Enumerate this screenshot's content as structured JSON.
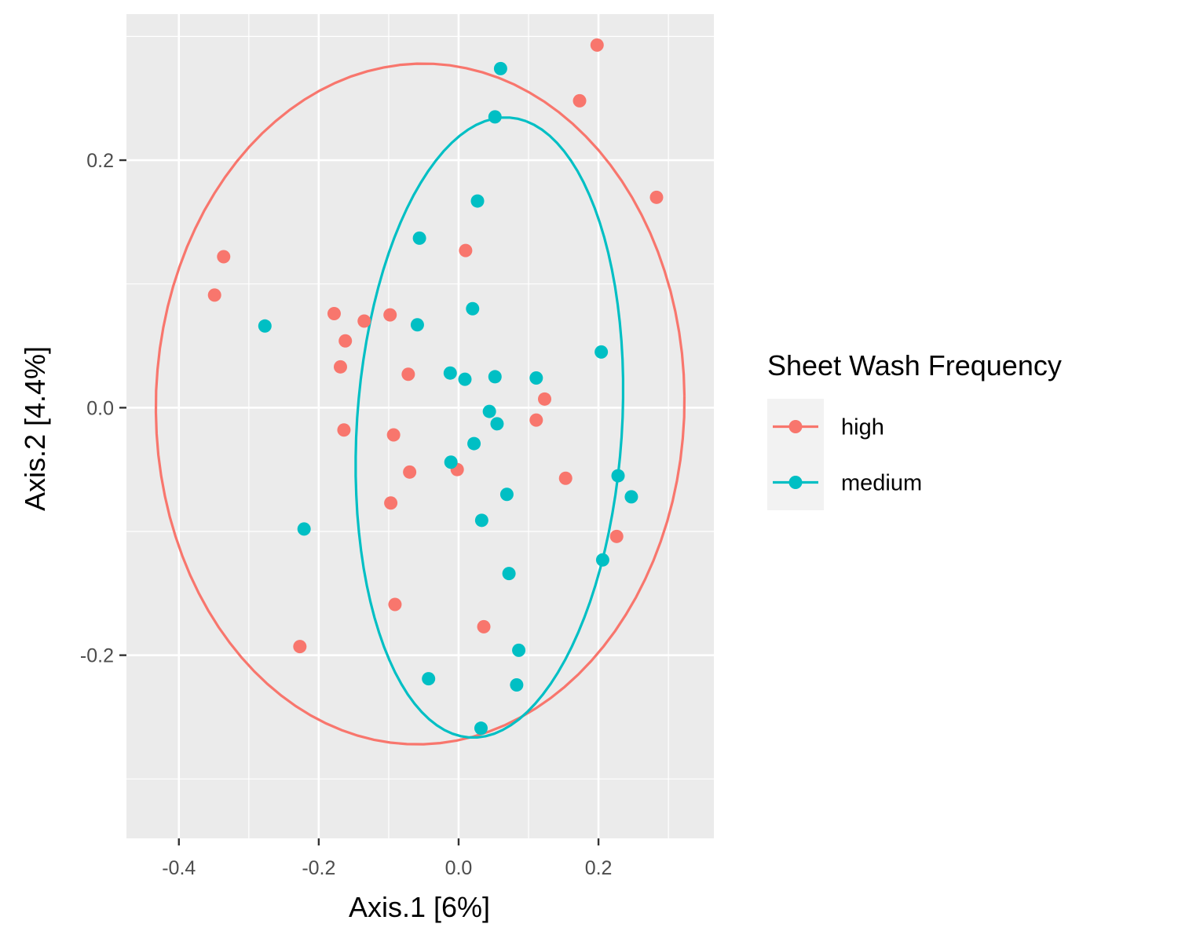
{
  "chart_data": {
    "type": "scatter",
    "title": "",
    "xlabel": "Axis.1   [6%]",
    "ylabel": "Axis.2   [4.4%]",
    "xlim": [
      -0.475,
      0.365
    ],
    "ylim": [
      -0.348,
      0.318
    ],
    "x_ticks": [
      -0.4,
      -0.2,
      0.0,
      0.2
    ],
    "x_tick_labels": [
      "-0.4",
      "-0.2",
      "0.0",
      "0.2"
    ],
    "y_ticks": [
      -0.2,
      0.0,
      0.2
    ],
    "y_tick_labels": [
      "-0.2",
      "0.0",
      "0.2"
    ],
    "grid": true,
    "legend": {
      "title": "Sheet Wash Frequency",
      "position": "right",
      "entries": [
        "high",
        "medium"
      ]
    },
    "colors": {
      "high": "#F8766D",
      "medium": "#00BFC4",
      "panel": "#EBEBEB",
      "grid": "#FFFFFF"
    },
    "series": [
      {
        "name": "high",
        "color": "#F8766D",
        "points": [
          [
            0.198,
            0.293
          ],
          [
            0.173,
            0.248
          ],
          [
            0.283,
            0.17
          ],
          [
            -0.336,
            0.122
          ],
          [
            -0.349,
            0.091
          ],
          [
            0.01,
            0.127
          ],
          [
            -0.178,
            0.076
          ],
          [
            -0.135,
            0.07
          ],
          [
            -0.098,
            0.075
          ],
          [
            -0.162,
            0.054
          ],
          [
            -0.169,
            0.033
          ],
          [
            -0.072,
            0.027
          ],
          [
            0.123,
            0.007
          ],
          [
            0.111,
            -0.01
          ],
          [
            -0.164,
            -0.018
          ],
          [
            -0.093,
            -0.022
          ],
          [
            -0.07,
            -0.052
          ],
          [
            -0.002,
            -0.05
          ],
          [
            0.153,
            -0.057
          ],
          [
            -0.097,
            -0.077
          ],
          [
            0.226,
            -0.104
          ],
          [
            -0.091,
            -0.159
          ],
          [
            0.036,
            -0.177
          ],
          [
            -0.227,
            -0.193
          ]
        ],
        "ellipse": {
          "center": [
            -0.055,
            0.003
          ],
          "semi_axes": [
            0.378,
            0.275
          ],
          "angle_deg": 1
        }
      },
      {
        "name": "medium",
        "color": "#00BFC4",
        "points": [
          [
            0.06,
            0.274
          ],
          [
            0.052,
            0.235
          ],
          [
            0.027,
            0.167
          ],
          [
            -0.056,
            0.137
          ],
          [
            0.02,
            0.08
          ],
          [
            -0.277,
            0.066
          ],
          [
            -0.059,
            0.067
          ],
          [
            0.204,
            0.045
          ],
          [
            -0.012,
            0.028
          ],
          [
            0.009,
            0.023
          ],
          [
            0.052,
            0.025
          ],
          [
            0.111,
            0.024
          ],
          [
            0.044,
            -0.003
          ],
          [
            0.055,
            -0.013
          ],
          [
            0.022,
            -0.029
          ],
          [
            -0.011,
            -0.044
          ],
          [
            0.228,
            -0.055
          ],
          [
            0.247,
            -0.072
          ],
          [
            0.069,
            -0.07
          ],
          [
            0.033,
            -0.091
          ],
          [
            -0.221,
            -0.098
          ],
          [
            0.206,
            -0.123
          ],
          [
            0.072,
            -0.134
          ],
          [
            0.086,
            -0.196
          ],
          [
            -0.043,
            -0.219
          ],
          [
            0.083,
            -0.224
          ],
          [
            0.032,
            -0.259
          ]
        ],
        "ellipse": {
          "center": [
            0.044,
            -0.016
          ],
          "semi_axes": [
            0.253,
            0.188
          ],
          "angle_deg": 78
        }
      }
    ]
  }
}
